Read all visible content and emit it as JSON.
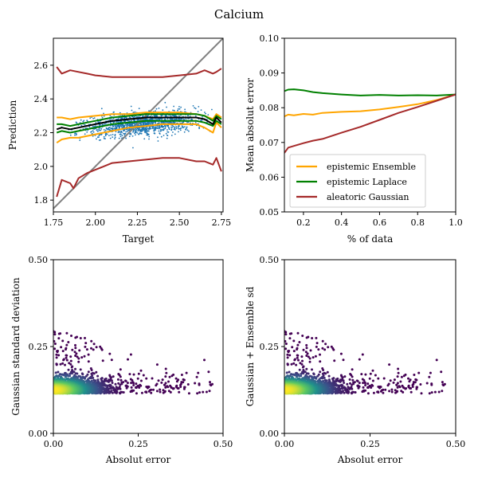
{
  "figure": {
    "title": "Calcium"
  },
  "chart_data": [
    {
      "type": "scatter",
      "panel": "top-left",
      "xlabel": "Target",
      "ylabel": "Prediction",
      "xlim": [
        1.75,
        2.76
      ],
      "ylim": [
        1.73,
        2.76
      ],
      "xticks": [
        "1.75",
        "2.00",
        "2.25",
        "2.50",
        "2.75"
      ],
      "yticks": [
        "1.8",
        "2.0",
        "2.2",
        "2.4",
        "2.6"
      ],
      "scatter_color": "#1f77b4",
      "scatter_x_range": [
        1.78,
        2.72
      ],
      "scatter_y_range": [
        2.08,
        2.4
      ],
      "series": [
        {
          "color": "#808080",
          "x": [
            1.75,
            2.76
          ],
          "y": [
            1.75,
            2.76
          ]
        },
        {
          "color": "#ffa500",
          "x": [
            1.77,
            1.8,
            1.85,
            1.9,
            2.0,
            2.1,
            2.2,
            2.3,
            2.4,
            2.5,
            2.6,
            2.65,
            2.7,
            2.72,
            2.75
          ],
          "y": [
            2.29,
            2.29,
            2.28,
            2.29,
            2.3,
            2.31,
            2.31,
            2.32,
            2.32,
            2.32,
            2.31,
            2.3,
            2.28,
            2.31,
            2.29
          ]
        },
        {
          "color": "#ffa500",
          "x": [
            1.77,
            1.8,
            1.85,
            1.9,
            2.0,
            2.1,
            2.2,
            2.3,
            2.4,
            2.5,
            2.6,
            2.65,
            2.7,
            2.72,
            2.75
          ],
          "y": [
            2.14,
            2.16,
            2.17,
            2.17,
            2.19,
            2.21,
            2.23,
            2.24,
            2.25,
            2.25,
            2.25,
            2.23,
            2.2,
            2.26,
            2.23
          ]
        },
        {
          "color": "#008000",
          "x": [
            1.77,
            1.8,
            1.85,
            1.9,
            2.0,
            2.1,
            2.2,
            2.3,
            2.4,
            2.5,
            2.6,
            2.65,
            2.7,
            2.72,
            2.75
          ],
          "y": [
            2.25,
            2.25,
            2.24,
            2.25,
            2.27,
            2.29,
            2.3,
            2.31,
            2.31,
            2.31,
            2.31,
            2.3,
            2.27,
            2.3,
            2.28
          ]
        },
        {
          "color": "#008000",
          "x": [
            1.77,
            1.8,
            1.85,
            1.9,
            2.0,
            2.1,
            2.2,
            2.3,
            2.4,
            2.5,
            2.6,
            2.65,
            2.7,
            2.72,
            2.75
          ],
          "y": [
            2.2,
            2.21,
            2.2,
            2.21,
            2.23,
            2.25,
            2.26,
            2.27,
            2.27,
            2.27,
            2.27,
            2.26,
            2.24,
            2.27,
            2.25
          ]
        },
        {
          "color": "#000000",
          "x": [
            1.77,
            1.8,
            1.85,
            1.9,
            2.0,
            2.1,
            2.2,
            2.3,
            2.4,
            2.5,
            2.6,
            2.65,
            2.7,
            2.72,
            2.75
          ],
          "y": [
            2.22,
            2.23,
            2.22,
            2.23,
            2.25,
            2.27,
            2.28,
            2.29,
            2.29,
            2.29,
            2.29,
            2.28,
            2.25,
            2.29,
            2.26
          ]
        },
        {
          "color": "#a52a2a",
          "x": [
            1.77,
            1.8,
            1.85,
            1.9,
            1.95,
            2.0,
            2.1,
            2.2,
            2.3,
            2.4,
            2.5,
            2.6,
            2.65,
            2.7,
            2.72,
            2.75
          ],
          "y": [
            2.59,
            2.55,
            2.57,
            2.56,
            2.55,
            2.54,
            2.53,
            2.53,
            2.53,
            2.53,
            2.54,
            2.55,
            2.57,
            2.55,
            2.56,
            2.58
          ]
        },
        {
          "color": "#a52a2a",
          "x": [
            1.77,
            1.8,
            1.85,
            1.87,
            1.9,
            1.95,
            2.0,
            2.1,
            2.2,
            2.3,
            2.4,
            2.5,
            2.6,
            2.65,
            2.7,
            2.72,
            2.75
          ],
          "y": [
            1.82,
            1.92,
            1.9,
            1.87,
            1.93,
            1.96,
            1.98,
            2.02,
            2.03,
            2.04,
            2.05,
            2.05,
            2.03,
            2.03,
            2.01,
            2.05,
            1.97
          ]
        }
      ]
    },
    {
      "type": "line",
      "panel": "top-right",
      "xlabel": "% of data",
      "ylabel": "Mean absolut error",
      "xlim": [
        0.1,
        1.0
      ],
      "ylim": [
        0.05,
        0.1
      ],
      "xticks": [
        "0.2",
        "0.4",
        "0.6",
        "0.8",
        "1.0"
      ],
      "yticks": [
        "0.05",
        "0.06",
        "0.07",
        "0.08",
        "0.09",
        "0.10"
      ],
      "legend_position": "lower-left",
      "series": [
        {
          "name": "epistemic Ensemble",
          "color": "#ffa500",
          "x": [
            0.1,
            0.12,
            0.15,
            0.2,
            0.25,
            0.3,
            0.4,
            0.5,
            0.6,
            0.7,
            0.8,
            0.9,
            1.0
          ],
          "y": [
            0.0775,
            0.078,
            0.0778,
            0.0782,
            0.078,
            0.0785,
            0.0788,
            0.079,
            0.0795,
            0.0802,
            0.081,
            0.0822,
            0.0838
          ]
        },
        {
          "name": "epistemic Laplace",
          "color": "#008000",
          "x": [
            0.1,
            0.12,
            0.15,
            0.2,
            0.25,
            0.3,
            0.4,
            0.5,
            0.6,
            0.7,
            0.8,
            0.9,
            1.0
          ],
          "y": [
            0.0848,
            0.0852,
            0.0853,
            0.085,
            0.0845,
            0.0842,
            0.0838,
            0.0835,
            0.0837,
            0.0835,
            0.0836,
            0.0835,
            0.0838
          ]
        },
        {
          "name": "aleatoric Gaussian",
          "color": "#a52a2a",
          "x": [
            0.1,
            0.12,
            0.15,
            0.2,
            0.25,
            0.3,
            0.4,
            0.5,
            0.6,
            0.7,
            0.8,
            0.9,
            1.0
          ],
          "y": [
            0.067,
            0.0685,
            0.069,
            0.0698,
            0.0705,
            0.071,
            0.0728,
            0.0745,
            0.0765,
            0.0785,
            0.0802,
            0.082,
            0.0838
          ]
        }
      ]
    },
    {
      "type": "scatter",
      "panel": "bottom-left",
      "xlabel": "Absolut error",
      "ylabel": "Gaussian standard deviation",
      "xlim": [
        0.0,
        0.5
      ],
      "ylim": [
        0.0,
        0.5
      ],
      "xticks": [
        "0.00",
        "0.25",
        "0.50"
      ],
      "yticks": [
        "0.00",
        "0.25",
        "0.50"
      ],
      "colormap": [
        "#440154",
        "#3b528b",
        "#21918c",
        "#5ec962",
        "#fde725"
      ],
      "scatter_x_range": [
        0.0,
        0.48
      ],
      "scatter_y_range": [
        0.1,
        0.31
      ]
    },
    {
      "type": "scatter",
      "panel": "bottom-right",
      "xlabel": "Absolut error",
      "ylabel": "Gaussian + Ensemble sd",
      "xlim": [
        0.0,
        0.5
      ],
      "ylim": [
        0.0,
        0.5
      ],
      "xticks": [
        "0.00",
        "0.25",
        "0.50"
      ],
      "yticks": [
        "0.00",
        "0.25",
        "0.50"
      ],
      "colormap": [
        "#440154",
        "#3b528b",
        "#21918c",
        "#5ec962",
        "#fde725"
      ],
      "scatter_x_range": [
        0.0,
        0.48
      ],
      "scatter_y_range": [
        0.1,
        0.31
      ]
    }
  ]
}
